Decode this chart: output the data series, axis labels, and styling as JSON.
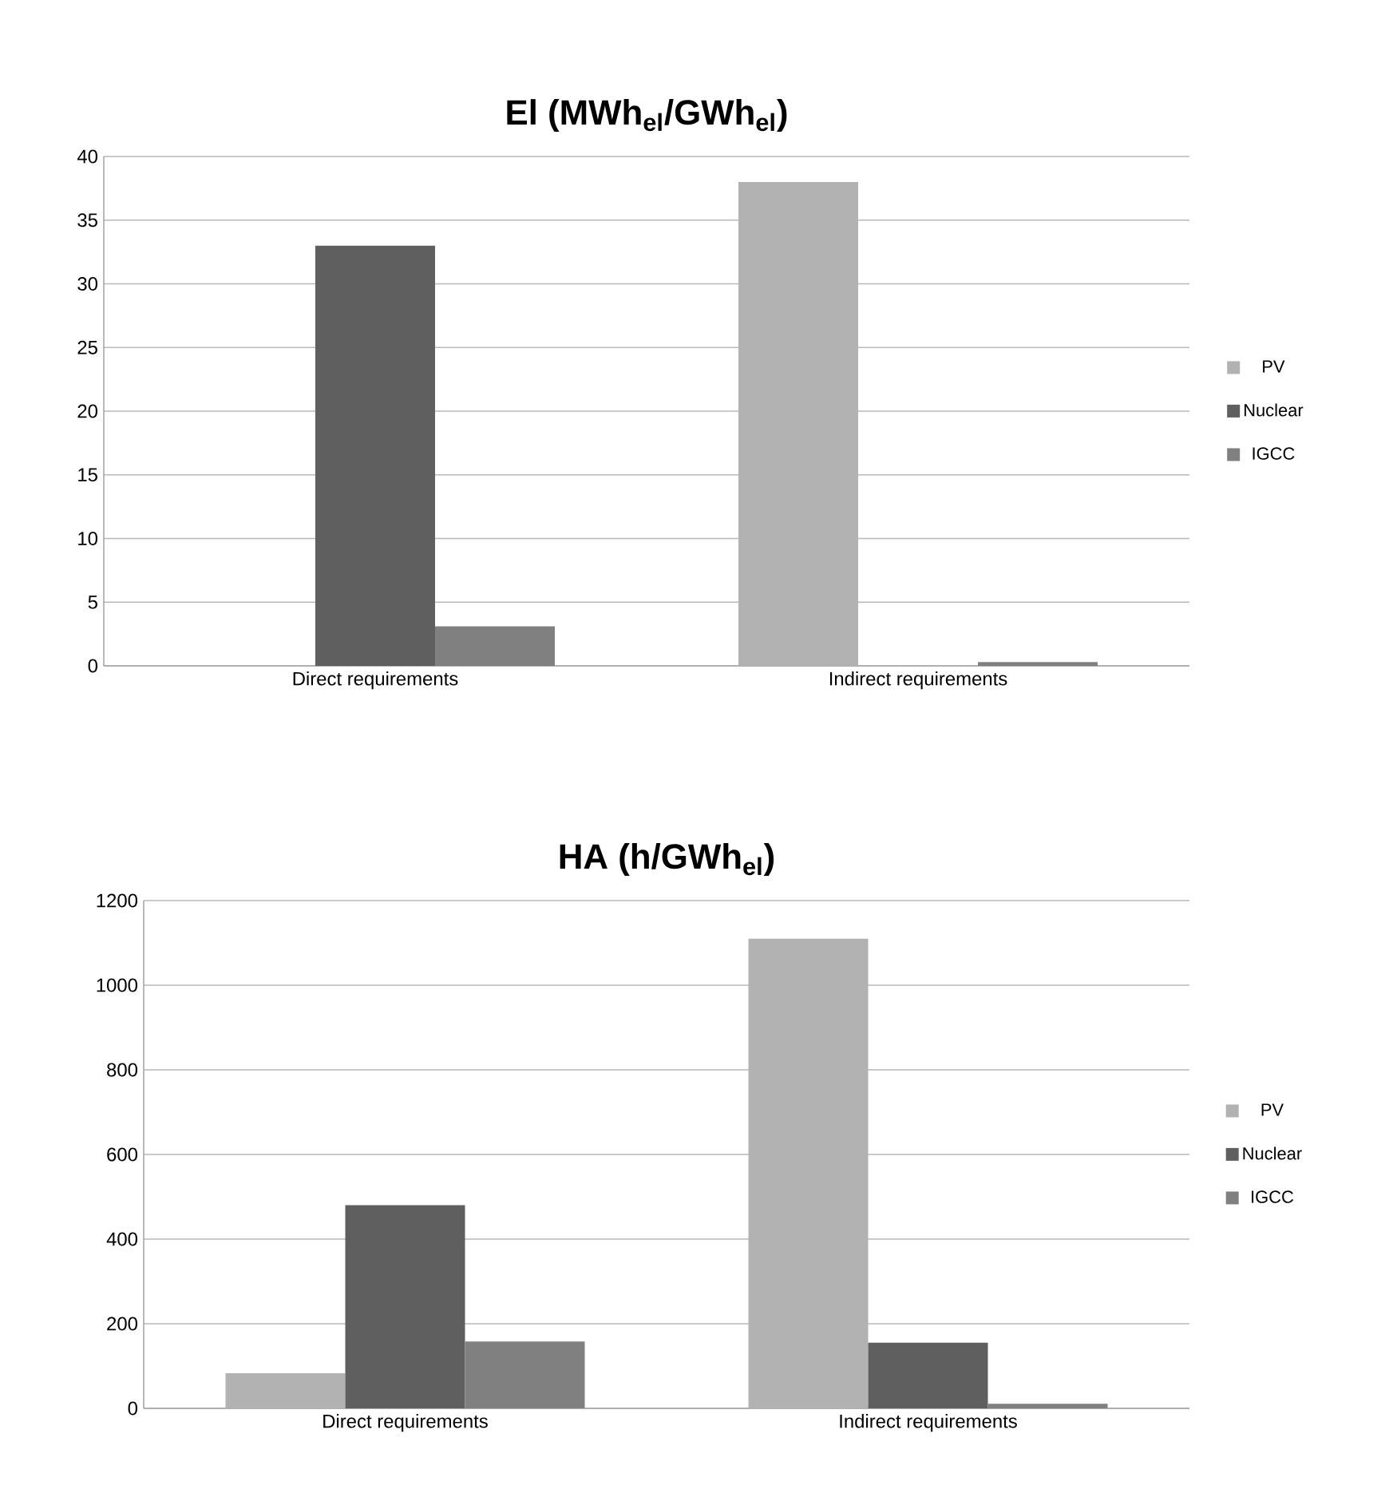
{
  "chart_data": [
    {
      "type": "bar",
      "title": "El (MWh$_{el}$/GWh$_{el}$)",
      "categories": [
        "Direct requirements",
        "Indirect requirements"
      ],
      "series": [
        {
          "name": "PV",
          "color": "#b2b2b2",
          "values": [
            0,
            38
          ]
        },
        {
          "name": "Nuclear",
          "color": "#5f5f5f",
          "values": [
            33,
            0
          ]
        },
        {
          "name": "IGCC",
          "color": "#808080",
          "values": [
            3.1,
            0.3
          ]
        }
      ],
      "ylim": [
        0,
        40
      ],
      "yticks": [
        0,
        5,
        10,
        15,
        20,
        25,
        30,
        35,
        40
      ],
      "grid": "y",
      "legend": "right"
    },
    {
      "type": "bar",
      "title": "HA (h/GWh$_{el}$)",
      "categories": [
        "Direct requirements",
        "Indirect requirements"
      ],
      "series": [
        {
          "name": "PV",
          "color": "#b2b2b2",
          "values": [
            83,
            1110
          ]
        },
        {
          "name": "Nuclear",
          "color": "#5f5f5f",
          "values": [
            480,
            155
          ]
        },
        {
          "name": "IGCC",
          "color": "#808080",
          "values": [
            158,
            11
          ]
        }
      ],
      "ylim": [
        0,
        1200
      ],
      "yticks": [
        0,
        200,
        400,
        600,
        800,
        1000,
        1200
      ],
      "grid": "y",
      "legend": "right"
    }
  ]
}
